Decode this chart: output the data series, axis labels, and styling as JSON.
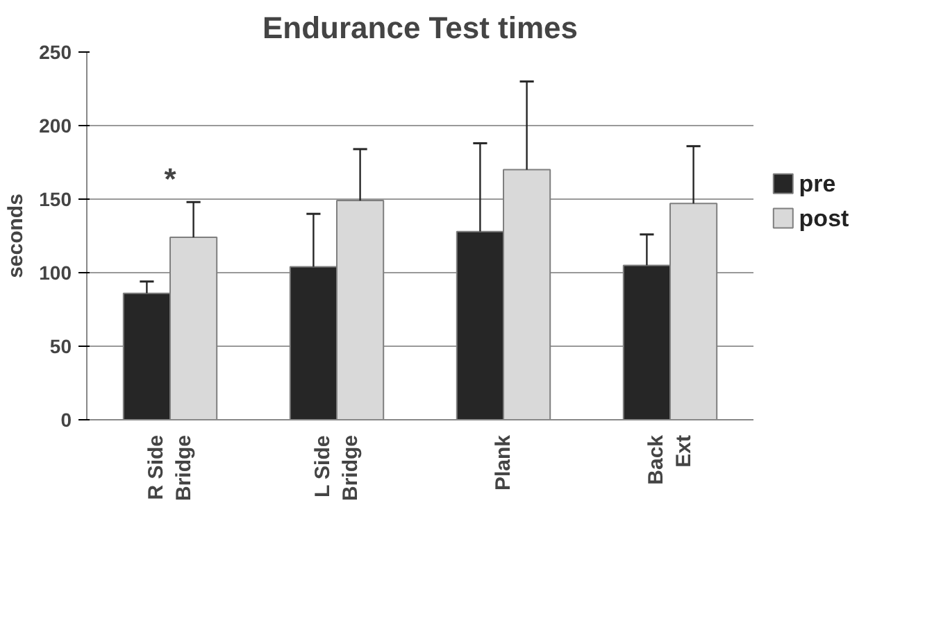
{
  "chart_data": {
    "type": "bar",
    "title": "Endurance Test times",
    "ylabel": "seconds",
    "categories": [
      "R Side\nBridge",
      "L Side\nBridge",
      "Plank",
      "Back\nExt"
    ],
    "series": [
      {
        "name": "pre",
        "color": "#262626",
        "values": [
          86,
          104,
          128,
          105
        ],
        "errors": [
          [
            86,
            94
          ],
          [
            104,
            140
          ],
          [
            128,
            188
          ],
          [
            105,
            126
          ]
        ]
      },
      {
        "name": "post",
        "color": "#d9d9d9",
        "values": [
          124,
          149,
          170,
          147
        ],
        "errors": [
          [
            124,
            148
          ],
          [
            149,
            184
          ],
          [
            170,
            230
          ],
          [
            147,
            186
          ]
        ]
      }
    ],
    "ylim": [
      0,
      250
    ],
    "yticks": [
      0,
      50,
      100,
      150,
      200,
      250
    ],
    "grid": "y",
    "legend": "right",
    "annotations": [
      "*"
    ]
  }
}
